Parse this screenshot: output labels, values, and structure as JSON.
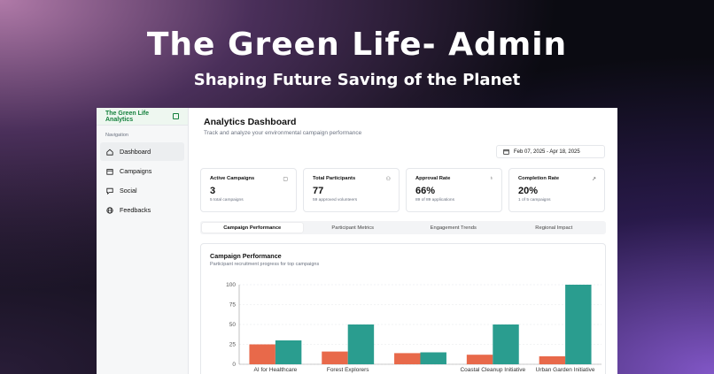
{
  "hero": {
    "title": "The Green Life- Admin",
    "subtitle": "Shaping Future Saving of the Planet"
  },
  "sidebar": {
    "brand": "The Green Life Analytics",
    "nav_label": "Navigation",
    "items": [
      {
        "label": "Dashboard",
        "icon": "home-icon",
        "active": true
      },
      {
        "label": "Campaigns",
        "icon": "calendar-icon",
        "active": false
      },
      {
        "label": "Social",
        "icon": "message-icon",
        "active": false
      },
      {
        "label": "Feedbacks",
        "icon": "globe-icon",
        "active": false
      }
    ]
  },
  "header": {
    "title": "Analytics Dashboard",
    "subtitle": "Track and analyze your environmental campaign performance",
    "date_range": "Feb 07, 2025 - Apr 18, 2025"
  },
  "cards": [
    {
      "label": "Active Campaigns",
      "value": "3",
      "sub": "5 total campaigns",
      "icon": "calendar-icon"
    },
    {
      "label": "Total Participants",
      "value": "77",
      "sub": "59 approved volunteers",
      "icon": "users-icon"
    },
    {
      "label": "Approval Rate",
      "value": "66%",
      "sub": "89 of 89 applications",
      "icon": "award-icon"
    },
    {
      "label": "Completion Rate",
      "value": "20%",
      "sub": "1 of 5 campaigns",
      "icon": "trending-up-icon"
    }
  ],
  "tabs": [
    {
      "label": "Campaign Performance",
      "active": true
    },
    {
      "label": "Participant Metrics",
      "active": false
    },
    {
      "label": "Engagement Trends",
      "active": false
    },
    {
      "label": "Regional Impact",
      "active": false
    }
  ],
  "chart_card": {
    "title": "Campaign Performance",
    "subtitle": "Participant recruitment progress for top campaigns"
  },
  "colors": {
    "accent_green": "#15803d",
    "bar_orange": "#e8694a",
    "bar_teal": "#2a9d8f"
  },
  "chart_data": {
    "type": "bar",
    "categories": [
      "AI for Healthcare",
      "Forest Explorers",
      "",
      "Coastal Cleanup Initiative",
      "Urban Garden Initiative"
    ],
    "series": [
      {
        "color": "#e8694a",
        "values": [
          25,
          16,
          14,
          12,
          10
        ]
      },
      {
        "color": "#2a9d8f",
        "values": [
          30,
          50,
          15,
          50,
          100
        ]
      }
    ],
    "yticks": [
      "0",
      "25",
      "50",
      "75",
      "100"
    ],
    "ylim": [
      0,
      100
    ],
    "grid": true
  }
}
